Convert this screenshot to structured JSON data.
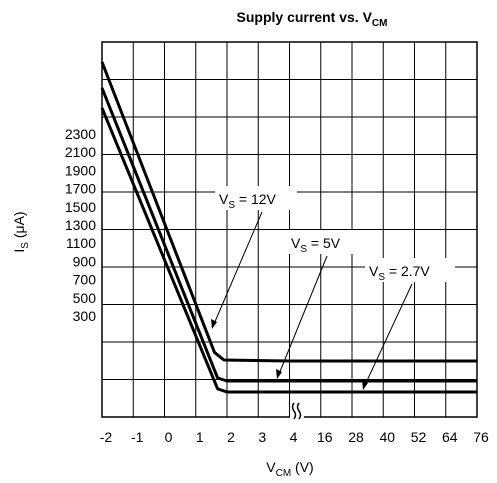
{
  "chart_data": {
    "type": "line",
    "title": {
      "text": "Supply current vs. V",
      "sub": "CM"
    },
    "x_label": {
      "text": "V",
      "sub": "CM",
      "rest": " (V)"
    },
    "y_label": {
      "text": "I",
      "sub": "S",
      "rest": " (μA)"
    },
    "xticks": [
      -2,
      -1,
      0,
      1,
      2,
      3,
      4,
      16,
      28,
      40,
      52,
      64,
      76
    ],
    "xlim": [
      -2,
      76
    ],
    "yticks": [
      2300,
      2100,
      1900,
      1700,
      1500,
      1300,
      1100,
      900,
      700,
      500,
      300
    ],
    "ylim": [
      -810,
      3311
    ],
    "grid": true,
    "series": [
      {
        "name": {
          "text": "V",
          "sub": "S",
          "rest": " = 12V"
        },
        "color": "#000000",
        "x": [
          -2,
          1.6,
          1.9,
          4,
          76
        ],
        "values": [
          3091,
          -100,
          -184,
          -195,
          -195
        ]
      },
      {
        "name": {
          "text": "V",
          "sub": "S",
          "rest": " = 5V"
        },
        "color": "#000000",
        "x": [
          -2,
          1.7,
          2,
          4,
          76
        ],
        "values": [
          2805,
          -380,
          -414,
          -414,
          -414
        ]
      },
      {
        "name": {
          "text": "V",
          "sub": "S",
          "rest": " = 2.7V"
        },
        "color": "#000000",
        "x": [
          -2,
          1.7,
          2,
          4,
          76
        ],
        "values": [
          2586,
          -500,
          -535,
          -535,
          -535
        ]
      }
    ]
  }
}
